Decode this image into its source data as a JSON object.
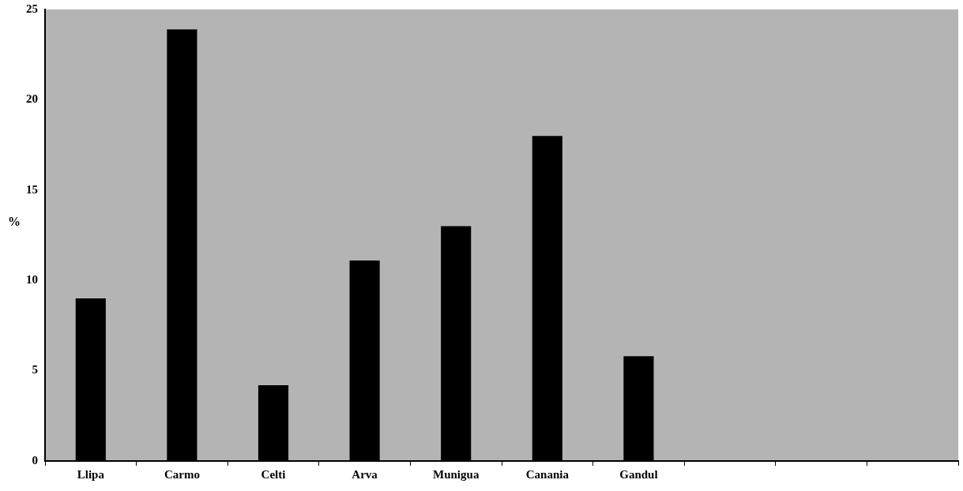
{
  "chart_data": {
    "type": "bar",
    "ylabel": "%",
    "categories": [
      "Llipa",
      "Carmo",
      "Celti",
      "Arva",
      "Munigua",
      "Canania",
      "Gandul",
      null,
      null,
      null
    ],
    "values": [
      9,
      23.9,
      4.2,
      11.1,
      13,
      18,
      5.8,
      null,
      null,
      null
    ],
    "color": "#000000",
    "ylim": [
      0,
      25
    ],
    "yticks": [
      0,
      5,
      10,
      15,
      20,
      25
    ]
  }
}
